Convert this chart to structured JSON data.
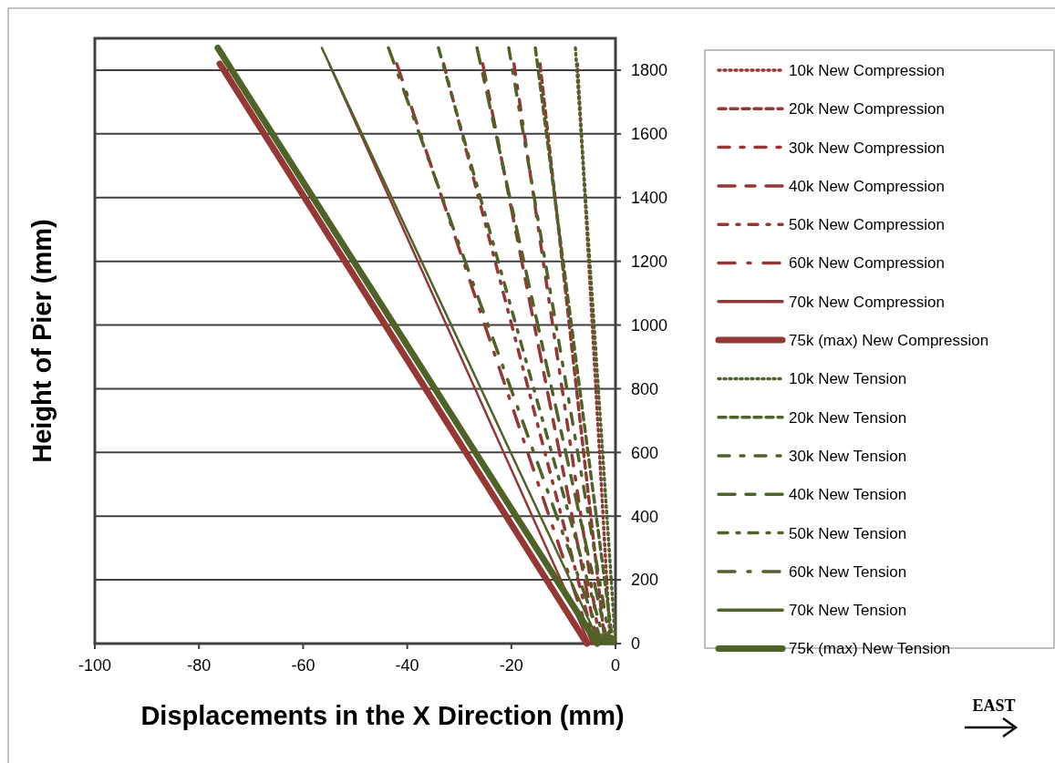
{
  "chart_data": {
    "type": "line",
    "xlabel": "Displacements in the X Direction (mm)",
    "ylabel": "Height of Pier (mm)",
    "xlim": [
      -100,
      0
    ],
    "xticks": [
      -100,
      -80,
      -60,
      -40,
      -20,
      0
    ],
    "ylim": [
      0,
      1900
    ],
    "yticks": [
      0,
      200,
      400,
      600,
      800,
      1000,
      1200,
      1400,
      1600,
      1800
    ],
    "grid": "y",
    "legend": "right",
    "marker": "none",
    "annotations": [
      "EAST"
    ],
    "series": [
      {
        "name": "10k New Compression",
        "color": "#953735",
        "line_style": "dotted",
        "x": [
          -1,
          -7.3
        ],
        "values": [
          0,
          1820
        ]
      },
      {
        "name": "20k New Compression",
        "color": "#953735",
        "line_style": "dashed",
        "x": [
          -2,
          -14.5
        ],
        "values": [
          0,
          1820
        ]
      },
      {
        "name": "30k New Compression",
        "color": "#953735",
        "line_style": "dashed",
        "x": [
          -3,
          -19.5
        ],
        "values": [
          0,
          1820
        ]
      },
      {
        "name": "40k New Compression",
        "color": "#953735",
        "line_style": "dashed",
        "x": [
          -3.5,
          -25.5
        ],
        "values": [
          0,
          1820
        ]
      },
      {
        "name": "50k New Compression",
        "color": "#953735",
        "line_style": "dashed",
        "x": [
          -4,
          -33
        ],
        "values": [
          0,
          1820
        ]
      },
      {
        "name": "60k New Compression",
        "color": "#953735",
        "line_style": "dashed",
        "x": [
          -4.5,
          -42
        ],
        "values": [
          0,
          1820
        ]
      },
      {
        "name": "70k New Compression",
        "color": "#953735",
        "line_style": "solid",
        "x": [
          -5,
          -55
        ],
        "values": [
          0,
          1820
        ]
      },
      {
        "name": "75k (max) New Compression",
        "color": "#953735",
        "line_style": "solid",
        "x": [
          -5.5,
          -76
        ],
        "values": [
          0,
          1820
        ]
      },
      {
        "name": "10k New Tension",
        "color": "#4f6228",
        "line_style": "dotted",
        "x": [
          0,
          -7.7
        ],
        "values": [
          0,
          1870
        ]
      },
      {
        "name": "20k New Tension",
        "color": "#4f6228",
        "line_style": "dashed",
        "x": [
          -0.5,
          -15.4
        ],
        "values": [
          0,
          1870
        ]
      },
      {
        "name": "30k New Tension",
        "color": "#4f6228",
        "line_style": "dashed",
        "x": [
          -1,
          -20.5
        ],
        "values": [
          0,
          1870
        ]
      },
      {
        "name": "40k New Tension",
        "color": "#4f6228",
        "line_style": "dashed",
        "x": [
          -1.5,
          -26.6
        ],
        "values": [
          0,
          1870
        ]
      },
      {
        "name": "50k New Tension",
        "color": "#4f6228",
        "line_style": "dashed",
        "x": [
          -2,
          -34
        ],
        "values": [
          0,
          1870
        ]
      },
      {
        "name": "60k New Tension",
        "color": "#4f6228",
        "line_style": "dashed",
        "x": [
          -2.5,
          -43.6
        ],
        "values": [
          0,
          1870
        ]
      },
      {
        "name": "70k New Tension",
        "color": "#4f6228",
        "line_style": "solid",
        "x": [
          -3,
          -56.4
        ],
        "values": [
          0,
          1870
        ]
      },
      {
        "name": "75k (max) New Tension",
        "color": "#4f6228",
        "line_style": "solid",
        "x": [
          -3.5,
          -76.4
        ],
        "values": [
          0,
          1870
        ]
      }
    ]
  }
}
